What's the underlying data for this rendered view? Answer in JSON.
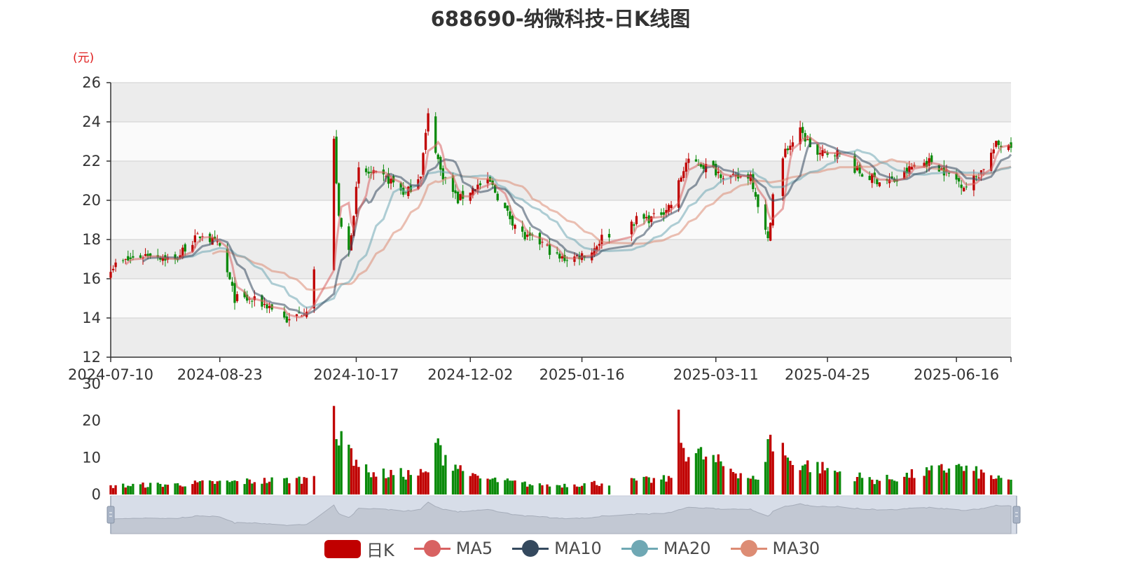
{
  "title": "688690-纳微科技-日K线图",
  "price_unit": "(元)",
  "legend": [
    {
      "name": "日K",
      "color": "#c00000",
      "kind": "box"
    },
    {
      "name": "MA5",
      "color": "#d86262",
      "kind": "line"
    },
    {
      "name": "MA10",
      "color": "#34495e",
      "kind": "line"
    },
    {
      "name": "MA20",
      "color": "#6fa8b4",
      "kind": "line"
    },
    {
      "name": "MA30",
      "color": "#dd8c74",
      "kind": "line"
    }
  ],
  "colors": {
    "up": "#c00000",
    "down": "#0a8a0a",
    "ma5": "#d86262",
    "ma10": "#34495e",
    "ma20": "#6fa8b4",
    "ma30": "#dd8c74",
    "band": "#ececec",
    "zoom_bg": "#d7dde8"
  },
  "chart_data": [
    {
      "type": "candlestick",
      "title": "688690-纳微科技-日K线图",
      "ylabel": "(元)",
      "ylim": [
        12,
        26
      ],
      "yticks": [
        12,
        14,
        16,
        18,
        20,
        22,
        24,
        26
      ],
      "xlim": [
        "2024-07-10",
        "2025-07-08"
      ],
      "xticks": [
        "2024-07-10",
        "2024-08-23",
        "2024-10-17",
        "2024-12-02",
        "2025-01-16",
        "2025-03-11",
        "2025-04-25",
        "2025-06-16"
      ],
      "price_anchors": {
        "x": [
          "2024-07-10",
          "2024-07-18",
          "2024-07-26",
          "2024-08-05",
          "2024-08-09",
          "2024-08-16",
          "2024-08-23",
          "2024-08-29",
          "2024-09-05",
          "2024-09-12",
          "2024-09-20",
          "2024-09-27",
          "2024-09-30",
          "2024-10-08",
          "2024-10-10",
          "2024-10-14",
          "2024-10-18",
          "2024-10-24",
          "2024-10-31",
          "2024-11-06",
          "2024-11-12",
          "2024-11-15",
          "2024-11-20",
          "2024-11-27",
          "2024-12-04",
          "2024-12-10",
          "2024-12-17",
          "2024-12-24",
          "2024-12-31",
          "2025-01-07",
          "2025-01-13",
          "2025-01-20",
          "2025-01-24",
          "2025-02-07",
          "2025-02-14",
          "2025-02-21",
          "2025-02-27",
          "2025-03-04",
          "2025-03-11",
          "2025-03-18",
          "2025-03-25",
          "2025-04-01",
          "2025-04-03",
          "2025-04-08",
          "2025-04-14",
          "2025-04-21",
          "2025-04-28",
          "2025-05-09",
          "2025-05-16",
          "2025-05-23",
          "2025-05-30",
          "2025-06-06",
          "2025-06-13",
          "2025-06-20",
          "2025-06-26",
          "2025-07-02",
          "2025-07-08"
        ],
        "close": [
          16.6,
          17.0,
          17.3,
          16.9,
          17.6,
          18.3,
          17.6,
          15.0,
          14.9,
          14.6,
          13.8,
          14.5,
          16.5,
          23.0,
          19.0,
          17.4,
          21.5,
          21.3,
          21.0,
          20.3,
          21.4,
          24.3,
          21.5,
          20.0,
          20.7,
          20.9,
          19.3,
          18.1,
          17.8,
          17.0,
          17.1,
          17.4,
          18.1,
          19.0,
          19.1,
          19.8,
          21.9,
          21.9,
          21.5,
          21.1,
          21.3,
          17.9,
          20.3,
          22.5,
          23.5,
          22.3,
          22.5,
          21.3,
          21.0,
          21.0,
          21.8,
          22.0,
          21.3,
          20.7,
          21.5,
          22.8,
          22.9
        ]
      },
      "moving_averages": [
        "MA5",
        "MA10",
        "MA20",
        "MA30"
      ]
    },
    {
      "type": "bar",
      "title": "",
      "ylim": [
        0,
        30
      ],
      "yticks": [
        0,
        10,
        20,
        30
      ],
      "volume_anchors": {
        "x": [
          "2024-07-10",
          "2024-08-05",
          "2024-09-27",
          "2024-09-30",
          "2024-10-08",
          "2024-10-09",
          "2024-10-14",
          "2024-10-22",
          "2024-11-15",
          "2024-11-18",
          "2024-12-02",
          "2024-12-31",
          "2025-02-21",
          "2025-02-24",
          "2025-02-25",
          "2025-03-28",
          "2025-04-01",
          "2025-04-07",
          "2025-04-09",
          "2025-05-15",
          "2025-06-16",
          "2025-07-04",
          "2025-07-08"
        ],
        "values": [
          2.5,
          3.0,
          4.5,
          5.0,
          24.0,
          15.0,
          13.5,
          6.0,
          6.0,
          14.0,
          5.0,
          2.5,
          4.5,
          23.0,
          14.0,
          4.0,
          15.0,
          14.0,
          10.0,
          4.0,
          8.0,
          4.5,
          4.0
        ]
      }
    }
  ]
}
